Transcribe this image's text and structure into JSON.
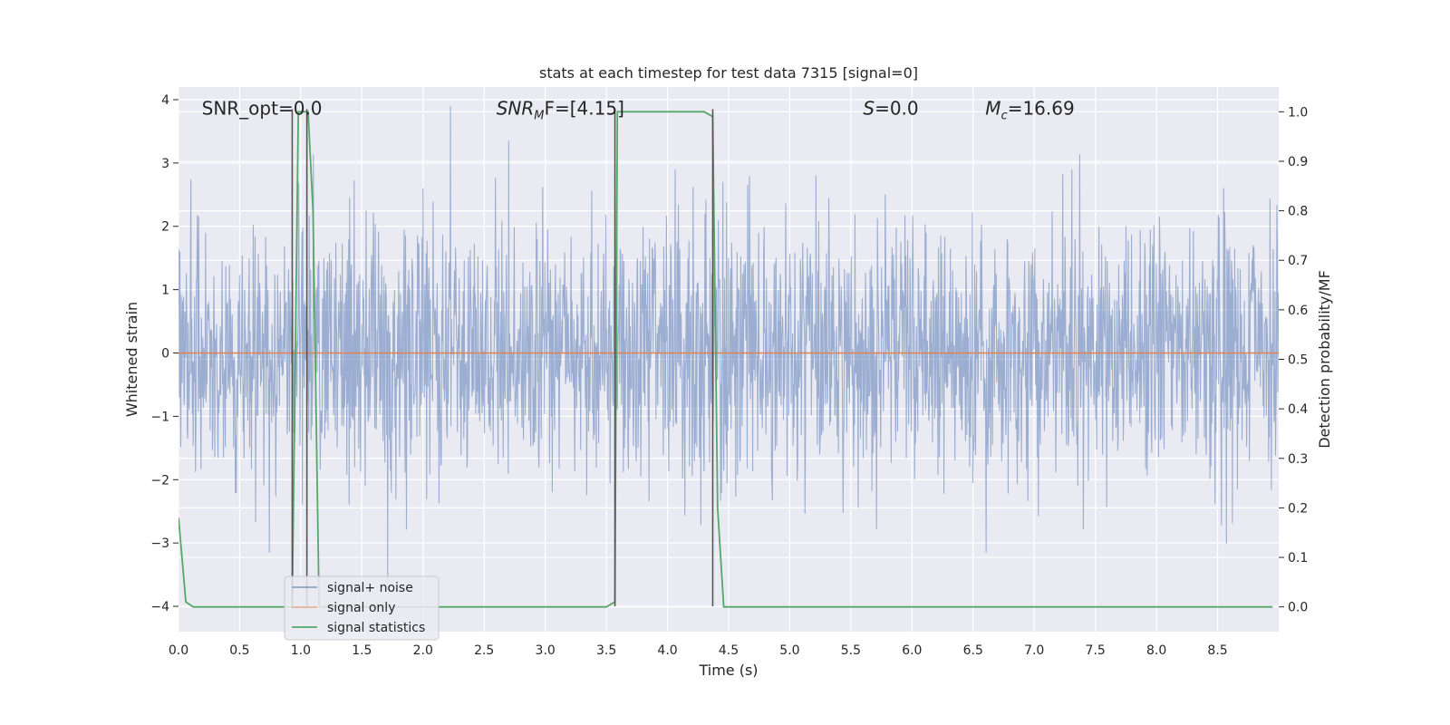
{
  "chart_data": {
    "type": "line",
    "title": "stats at each timestep for test data 7315 [signal=0]",
    "xlabel": "Time (s)",
    "ylabel": "Whitened strain",
    "y2label": "Detection probability/MF",
    "xlim": [
      0.0,
      9.0
    ],
    "ylim": [
      -4.4,
      4.2
    ],
    "y2lim": [
      -0.05,
      1.05
    ],
    "x_ticks": [
      "0.0",
      "0.5",
      "1.0",
      "1.5",
      "2.0",
      "2.5",
      "3.0",
      "3.5",
      "4.0",
      "4.5",
      "5.0",
      "5.5",
      "6.0",
      "6.5",
      "7.0",
      "7.5",
      "8.0",
      "8.5"
    ],
    "y_ticks": [
      "4",
      "3",
      "2",
      "1",
      "0",
      "−1",
      "−2",
      "−3",
      "−4"
    ],
    "y2_ticks": [
      "1.0",
      "0.9",
      "0.8",
      "0.7",
      "0.6",
      "0.5",
      "0.4",
      "0.3",
      "0.2",
      "0.1",
      "0.0"
    ],
    "grid": true,
    "legend_position": "lower-left",
    "annotations": [
      {
        "text": "SNR_opt=0.0",
        "x": 0.19,
        "y": 3.85
      },
      {
        "text": "SNR",
        "sub": "M",
        "suffix": "F=[4.15]",
        "x": 2.6,
        "y": 3.85
      },
      {
        "text": "S",
        "suffix": "=0.0",
        "x": 5.6,
        "y": 3.85
      },
      {
        "text": "M",
        "sub": "c",
        "suffix": "=16.69",
        "x": 6.6,
        "y": 3.85
      }
    ],
    "vlines": [
      {
        "x": 0.93,
        "ymin": -4.0,
        "ymax": 3.85
      },
      {
        "x": 1.05,
        "ymin": -4.0,
        "ymax": 3.85
      },
      {
        "x": 3.57,
        "ymin": -4.0,
        "ymax": 3.85
      },
      {
        "x": 4.37,
        "ymin": -4.0,
        "ymax": 3.85
      }
    ],
    "series": [
      {
        "name": "signal+ noise",
        "color": "#4c72b0",
        "kind": "noise",
        "sigma": 1.0,
        "clip": [
          -4.0,
          3.9
        ],
        "seed": 7315
      },
      {
        "name": "signal only",
        "color": "#dd8452",
        "x": [
          0.0,
          9.0
        ],
        "values": [
          0.0,
          0.0
        ]
      },
      {
        "name": "signal statistics",
        "color": "#55a868",
        "axis": "right",
        "x": [
          0.0,
          0.06,
          0.12,
          0.9,
          0.93,
          0.98,
          1.02,
          1.06,
          1.1,
          1.15,
          1.18,
          1.2,
          3.5,
          3.57,
          3.59,
          3.62,
          3.66,
          4.3,
          4.37,
          4.41,
          4.46,
          4.6,
          8.95
        ],
        "values": [
          0.18,
          0.01,
          0.0,
          0.0,
          0.0,
          1.0,
          1.0,
          1.0,
          0.8,
          0.0,
          0.0,
          0.0,
          0.0,
          0.01,
          1.0,
          1.0,
          1.0,
          1.0,
          0.99,
          0.2,
          0.0,
          0.0,
          0.0
        ]
      }
    ]
  }
}
